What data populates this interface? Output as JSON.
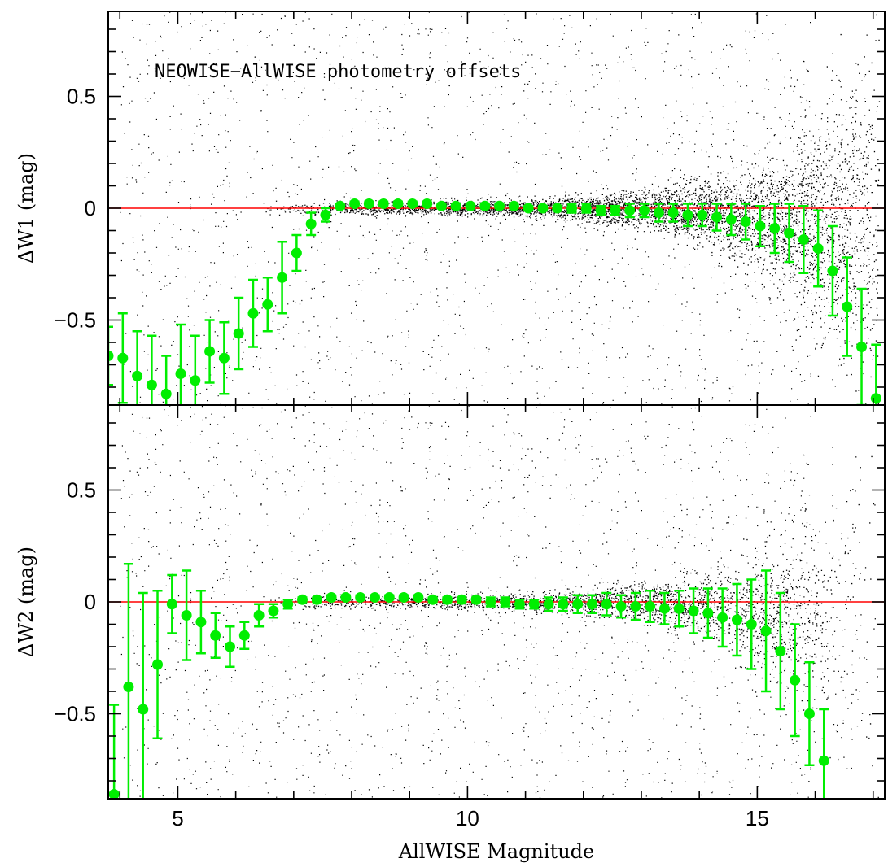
{
  "chart_data": [
    {
      "type": "scatter",
      "title": "NEOWISE−AllWISE photometry offsets",
      "xlabel": "AllWISE Magnitude",
      "ylabel": "ΔW1 (mag)",
      "xlim": [
        3.8,
        17.2
      ],
      "ylim": [
        -0.88,
        0.88
      ],
      "x_ticks": [
        "5",
        "10",
        "15"
      ],
      "y_ticks": [
        "0.5",
        "0",
        "−0.5"
      ],
      "reference_line": {
        "y": 0,
        "color": "#ff0000"
      },
      "colors": {
        "points": "#000000",
        "binned": "#00ee00",
        "reference": "#ff0000"
      },
      "binned_series": {
        "name": "",
        "x": [
          3.8,
          4.05,
          4.3,
          4.55,
          4.8,
          5.05,
          5.3,
          5.55,
          5.8,
          6.05,
          6.3,
          6.55,
          6.8,
          7.05,
          7.3,
          7.55,
          7.8,
          8.05,
          8.3,
          8.55,
          8.8,
          9.05,
          9.3,
          9.55,
          9.8,
          10.05,
          10.3,
          10.55,
          10.8,
          11.05,
          11.3,
          11.55,
          11.8,
          12.05,
          12.3,
          12.55,
          12.8,
          13.05,
          13.3,
          13.55,
          13.8,
          14.05,
          14.3,
          14.55,
          14.8,
          15.05,
          15.3,
          15.55,
          15.8,
          16.05,
          16.3,
          16.55,
          16.8,
          17.05
        ],
        "y": [
          -0.66,
          -0.67,
          -0.75,
          -0.79,
          -0.83,
          -0.74,
          -0.77,
          -0.64,
          -0.67,
          -0.56,
          -0.47,
          -0.43,
          -0.31,
          -0.2,
          -0.07,
          -0.03,
          0.01,
          0.02,
          0.02,
          0.02,
          0.02,
          0.02,
          0.02,
          0.01,
          0.01,
          0.01,
          0.01,
          0.01,
          0.01,
          0.0,
          0.0,
          0.0,
          0.0,
          0.0,
          -0.01,
          -0.01,
          -0.01,
          -0.01,
          -0.02,
          -0.02,
          -0.03,
          -0.03,
          -0.04,
          -0.05,
          -0.06,
          -0.08,
          -0.09,
          -0.11,
          -0.14,
          -0.18,
          -0.28,
          -0.44,
          -0.62,
          -0.85
        ],
        "err": [
          0.13,
          0.2,
          0.2,
          0.22,
          0.17,
          0.22,
          0.2,
          0.14,
          0.16,
          0.16,
          0.15,
          0.12,
          0.16,
          0.08,
          0.05,
          0.03,
          0.01,
          0.01,
          0.01,
          0.01,
          0.01,
          0.01,
          0.01,
          0.01,
          0.01,
          0.01,
          0.01,
          0.01,
          0.01,
          0.01,
          0.01,
          0.01,
          0.02,
          0.02,
          0.02,
          0.02,
          0.03,
          0.03,
          0.04,
          0.04,
          0.05,
          0.05,
          0.06,
          0.07,
          0.08,
          0.09,
          0.11,
          0.13,
          0.15,
          0.17,
          0.2,
          0.22,
          0.26,
          0.24
        ]
      }
    },
    {
      "type": "scatter",
      "xlabel": "AllWISE Magnitude",
      "ylabel": "ΔW2 (mag)",
      "xlim": [
        3.8,
        17.2
      ],
      "ylim": [
        -0.88,
        0.88
      ],
      "x_ticks": [
        "5",
        "10",
        "15"
      ],
      "y_ticks": [
        "0.5",
        "0",
        "−0.5"
      ],
      "reference_line": {
        "y": 0,
        "color": "#ff0000"
      },
      "colors": {
        "points": "#000000",
        "binned": "#00ee00",
        "reference": "#ff0000"
      },
      "binned_series": {
        "name": "",
        "x": [
          3.9,
          4.15,
          4.4,
          4.65,
          4.9,
          5.15,
          5.4,
          5.65,
          5.9,
          6.15,
          6.4,
          6.65,
          6.9,
          7.15,
          7.4,
          7.65,
          7.9,
          8.15,
          8.4,
          8.65,
          8.9,
          9.15,
          9.4,
          9.65,
          9.9,
          10.15,
          10.4,
          10.65,
          10.9,
          11.15,
          11.4,
          11.65,
          11.9,
          12.15,
          12.4,
          12.65,
          12.9,
          13.15,
          13.4,
          13.65,
          13.9,
          14.15,
          14.4,
          14.65,
          14.9,
          15.15,
          15.4,
          15.65,
          15.9,
          16.15
        ],
        "y": [
          -0.86,
          -0.38,
          -0.48,
          -0.28,
          -0.01,
          -0.06,
          -0.09,
          -0.15,
          -0.2,
          -0.15,
          -0.06,
          -0.04,
          -0.01,
          0.01,
          0.01,
          0.02,
          0.02,
          0.02,
          0.02,
          0.02,
          0.02,
          0.02,
          0.01,
          0.01,
          0.01,
          0.01,
          0.0,
          0.0,
          -0.01,
          -0.01,
          -0.01,
          -0.01,
          -0.01,
          -0.01,
          -0.01,
          -0.02,
          -0.02,
          -0.02,
          -0.03,
          -0.03,
          -0.04,
          -0.05,
          -0.07,
          -0.08,
          -0.1,
          -0.13,
          -0.22,
          -0.35,
          -0.5,
          -0.71
        ],
        "err": [
          0.4,
          0.55,
          0.52,
          0.33,
          0.13,
          0.2,
          0.14,
          0.1,
          0.09,
          0.06,
          0.05,
          0.03,
          0.02,
          0.01,
          0.01,
          0.01,
          0.01,
          0.01,
          0.01,
          0.01,
          0.01,
          0.01,
          0.01,
          0.01,
          0.01,
          0.01,
          0.02,
          0.02,
          0.02,
          0.02,
          0.03,
          0.03,
          0.04,
          0.04,
          0.05,
          0.05,
          0.06,
          0.07,
          0.07,
          0.08,
          0.1,
          0.11,
          0.13,
          0.16,
          0.2,
          0.27,
          0.26,
          0.25,
          0.23,
          0.23
        ]
      }
    }
  ]
}
